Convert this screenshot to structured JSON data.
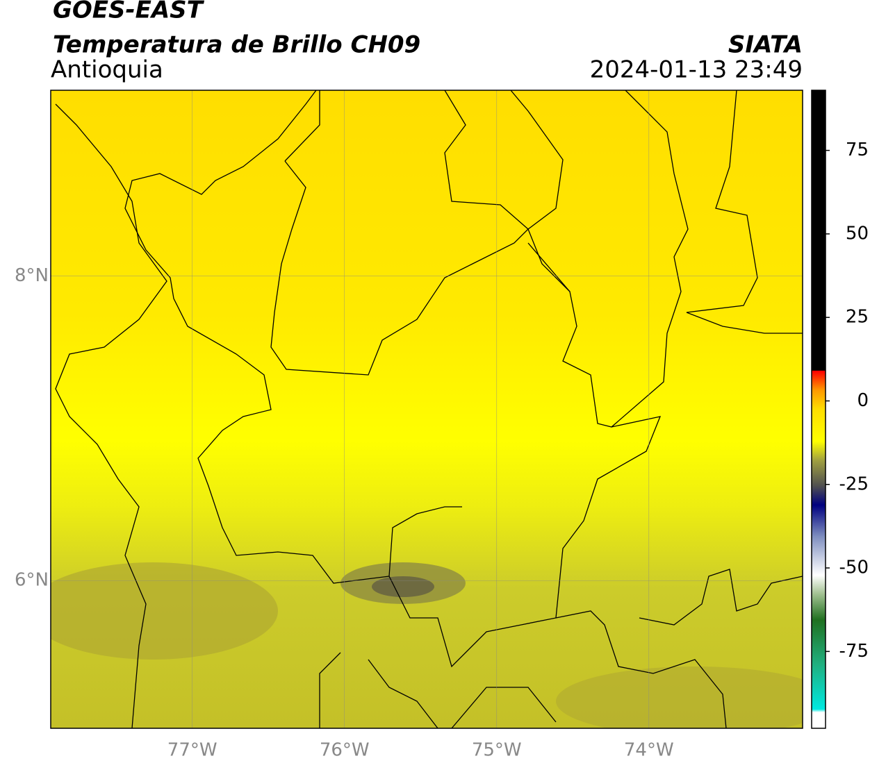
{
  "header": {
    "title": "GOES-EAST",
    "subtitle": "Temperatura de Brillo CH09",
    "region": "Antioquia",
    "source": "SIATA",
    "datetime": "2024-01-13 23:49"
  },
  "map": {
    "xlim": [
      -77.93,
      -72.99
    ],
    "ylim": [
      5.03,
      9.22
    ],
    "xticks": [
      {
        "value": -77,
        "label": "77°W"
      },
      {
        "value": -76,
        "label": "76°W"
      },
      {
        "value": -75,
        "label": "75°W"
      },
      {
        "value": -74,
        "label": "74°W"
      }
    ],
    "yticks": [
      {
        "value": 8,
        "label": "8°N"
      },
      {
        "value": 6,
        "label": "6°N"
      }
    ]
  },
  "colorbar": {
    "lim": [
      -98,
      93
    ],
    "ticks": [
      75,
      50,
      25,
      0,
      -25,
      -50,
      -75
    ]
  }
}
